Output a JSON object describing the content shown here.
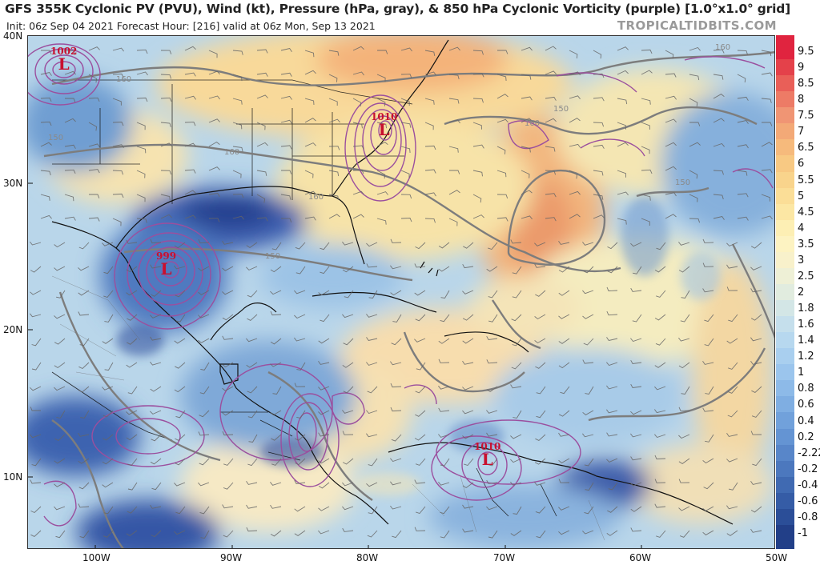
{
  "title": "GFS 355K Cyclonic PV (PVU), Wind (kt), Pressure (hPa, gray), & 850 hPa Cyclonic Vorticity (purple) [1.0°x1.0° grid]",
  "subtitle": "Init: 06z Sep 04 2021   Forecast Hour: [216]   valid at 06z Mon, Sep 13 2021",
  "brand": "TROPICALTIDBITS.COM",
  "lat_labels": [
    "40N",
    "30N",
    "20N",
    "10N"
  ],
  "lon_labels": [
    "100W",
    "90W",
    "80W",
    "70W",
    "60W",
    "50W"
  ],
  "colorbar_labels": [
    "9.5",
    "9",
    "8.5",
    "8",
    "7.5",
    "7",
    "6.5",
    "6",
    "5.5",
    "5",
    "4.5",
    "4",
    "3.5",
    "3",
    "2.5",
    "2",
    "1.8",
    "1.6",
    "1.4",
    "1.2",
    "1",
    "0.8",
    "0.6",
    "0.4",
    "0.2",
    "-2.22",
    "-0.2",
    "-0.4",
    "-0.6",
    "-0.8",
    "-1"
  ],
  "colorbar_colors": [
    "#e0243f",
    "#e4414a",
    "#e95f58",
    "#ed7b66",
    "#f09574",
    "#f3a977",
    "#f6ba7c",
    "#f8c983",
    "#f9d48c",
    "#fbde97",
    "#fce7a4",
    "#fdefb4",
    "#fdf3c2",
    "#f8f1cb",
    "#eef0d6",
    "#e1ecdf",
    "#d3e6e6",
    "#c5dfec",
    "#b7d8ef",
    "#a9cfef",
    "#9bc5ed",
    "#8dbae8",
    "#7faee2",
    "#71a1db",
    "#6494d3",
    "#5886c9",
    "#4c78be",
    "#406ab2",
    "#355ca6",
    "#2b4e98",
    "#223f88"
  ],
  "lows": [
    {
      "pressure": "1002",
      "letter": "L"
    },
    {
      "pressure": "1010",
      "letter": "L"
    },
    {
      "pressure": "999",
      "letter": "L"
    },
    {
      "pressure": "1010",
      "letter": "L"
    }
  ],
  "isobar_labels": [
    "160",
    "150",
    "160",
    "160",
    "150",
    "160",
    "150",
    "160",
    "150"
  ]
}
